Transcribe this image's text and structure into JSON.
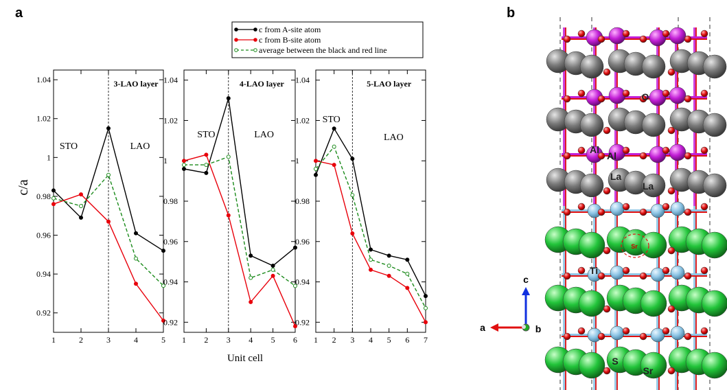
{
  "panel_a_label": "a",
  "panel_b_label": "b",
  "colors": {
    "a_site": "#000000",
    "b_site": "#e8000b",
    "average": "#1a8a1a",
    "la_atom": "#7a7a7a",
    "sr_atom": "#22c43a",
    "al_atom": "#c21fd6",
    "ti_atom": "#8fc6e6",
    "o_atom": "#e01010"
  },
  "chart_data": {
    "type": "line",
    "ylabel": "c/a",
    "xlabel": "Unit cell",
    "legend": {
      "placement": "top-center",
      "entries": [
        {
          "key": "a_site",
          "label": "c from A-site atom"
        },
        {
          "key": "b_site",
          "label": "c from B-site atom"
        },
        {
          "key": "average",
          "label": "average between the black and red line"
        }
      ]
    },
    "panels": [
      {
        "layer_label": "3-LAO layer",
        "sto_label": "STO",
        "lao_label": "LAO",
        "interface_x": 3,
        "xlim": [
          1,
          5
        ],
        "ylim": [
          0.91,
          1.045
        ],
        "x_ticks": [
          1,
          2,
          3,
          4,
          5
        ],
        "y_ticks": [
          0.92,
          0.94,
          0.96,
          0.98,
          1,
          1.02,
          1.04
        ],
        "y_tick_labels": [
          "0.92",
          "0.94",
          "0.96",
          "0.98",
          "1",
          "1.02",
          "1.04"
        ],
        "series": [
          {
            "key": "a_site",
            "x": [
              1,
              2,
              3,
              4,
              5
            ],
            "y": [
              0.983,
              0.969,
              1.015,
              0.961,
              0.952
            ]
          },
          {
            "key": "b_site",
            "x": [
              1,
              2,
              3,
              4,
              5
            ],
            "y": [
              0.976,
              0.981,
              0.967,
              0.935,
              0.916
            ]
          },
          {
            "key": "average",
            "x": [
              1,
              2,
              3,
              4,
              5
            ],
            "y": [
              0.979,
              0.975,
              0.991,
              0.948,
              0.934
            ]
          }
        ]
      },
      {
        "layer_label": "4-LAO layer",
        "sto_label": "STO",
        "lao_label": "LAO",
        "interface_x": 3,
        "xlim": [
          1,
          6
        ],
        "ylim": [
          0.915,
          1.045
        ],
        "x_ticks": [
          1,
          2,
          3,
          4,
          5,
          6
        ],
        "y_ticks": [
          0.92,
          0.94,
          0.96,
          0.98,
          1,
          1.02,
          1.04
        ],
        "y_tick_labels": [
          "0.92",
          "0.94",
          "0.96",
          "0.98",
          "1",
          "1.02",
          "1.04"
        ],
        "series": [
          {
            "key": "a_site",
            "x": [
              1,
              2,
              3,
              4,
              5,
              6
            ],
            "y": [
              0.996,
              0.994,
              1.031,
              0.953,
              0.948,
              0.957
            ]
          },
          {
            "key": "b_site",
            "x": [
              1,
              2,
              3,
              4,
              5,
              6
            ],
            "y": [
              1.0,
              1.003,
              0.973,
              0.93,
              0.943,
              0.918
            ]
          },
          {
            "key": "average",
            "x": [
              1,
              2,
              3,
              4,
              5,
              6
            ],
            "y": [
              0.998,
              0.998,
              1.002,
              0.942,
              0.946,
              0.938
            ]
          }
        ]
      },
      {
        "layer_label": "5-LAO layer",
        "sto_label": "STO",
        "lao_label": "LAO",
        "interface_x": 3,
        "xlim": [
          1,
          7
        ],
        "ylim": [
          0.915,
          1.045
        ],
        "x_ticks": [
          1,
          2,
          3,
          4,
          5,
          6,
          7
        ],
        "y_ticks": [
          0.92,
          0.94,
          0.96,
          0.98,
          1,
          1.02,
          1.04
        ],
        "y_tick_labels": [
          "0.92",
          "0.94",
          "0.96",
          "0.98",
          "1",
          "1.02",
          "1.04"
        ],
        "series": [
          {
            "key": "a_site",
            "x": [
              1,
              2,
              3,
              4,
              5,
              6,
              7
            ],
            "y": [
              0.993,
              1.016,
              1.001,
              0.956,
              0.953,
              0.951,
              0.933
            ]
          },
          {
            "key": "b_site",
            "x": [
              1,
              2,
              3,
              4,
              5,
              6,
              7
            ],
            "y": [
              1.0,
              0.998,
              0.964,
              0.946,
              0.943,
              0.937,
              0.92
            ]
          },
          {
            "key": "average",
            "x": [
              1,
              2,
              3,
              4,
              5,
              6,
              7
            ],
            "y": [
              0.996,
              1.007,
              0.983,
              0.951,
              0.948,
              0.944,
              0.927
            ]
          }
        ]
      }
    ]
  },
  "structure": {
    "labels": {
      "oxygen": "O",
      "aluminium_1": "Al",
      "aluminium_2": "Al",
      "lanthanum_1": "La",
      "lanthanum_2": "La",
      "strontium_marked": "Sr",
      "titanium": "Ti",
      "strontium_1": "S",
      "strontium_2": "Sr"
    },
    "axes": {
      "a": "a",
      "b": "b",
      "c": "c"
    }
  }
}
